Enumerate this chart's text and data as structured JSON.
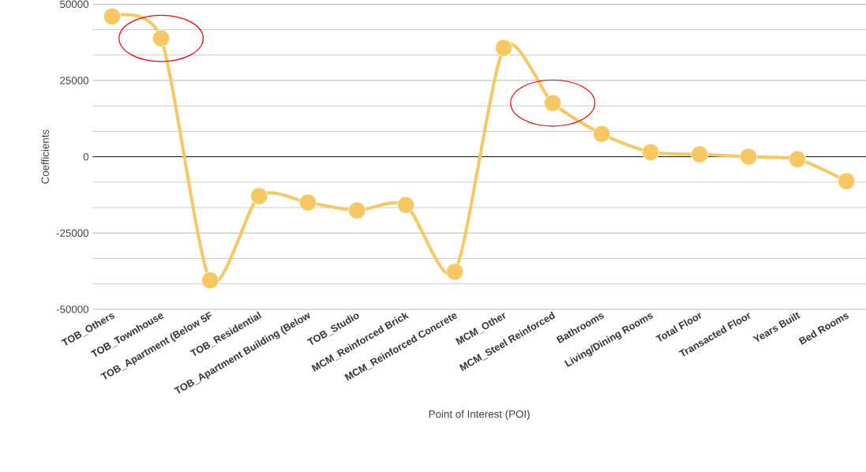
{
  "chart_data": {
    "type": "line",
    "xlabel": "Point of Interest (POI)",
    "ylabel": "Coefficients",
    "categories": [
      "TOB_Others",
      "TOB_Townhouse",
      "TOB_Apartment (Below 5F",
      "TOB_Residential",
      "TOB_Apartment Building (Below",
      "TOB_Studio",
      "MCM_Reinforced Brick",
      "MCM_Reinforced Concrete",
      "MCM_Other",
      "MCM_Steel Reinforced",
      "Bathrooms",
      "Living/Dining Rooms",
      "Total Floor",
      "Transacted Floor",
      "Years Built",
      "Bed Rooms"
    ],
    "series": [
      {
        "color": "#f7c862",
        "values": [
          46000,
          38800,
          -40500,
          -12900,
          -15000,
          -17600,
          -15800,
          -37700,
          35700,
          17600,
          7500,
          1500,
          800,
          0,
          -800,
          -8000
        ]
      }
    ],
    "ylim": [
      -50000,
      50000
    ],
    "yticks": [
      -50000,
      -25000,
      0,
      25000,
      50000
    ],
    "grid": "y",
    "marker": "circle"
  }
}
